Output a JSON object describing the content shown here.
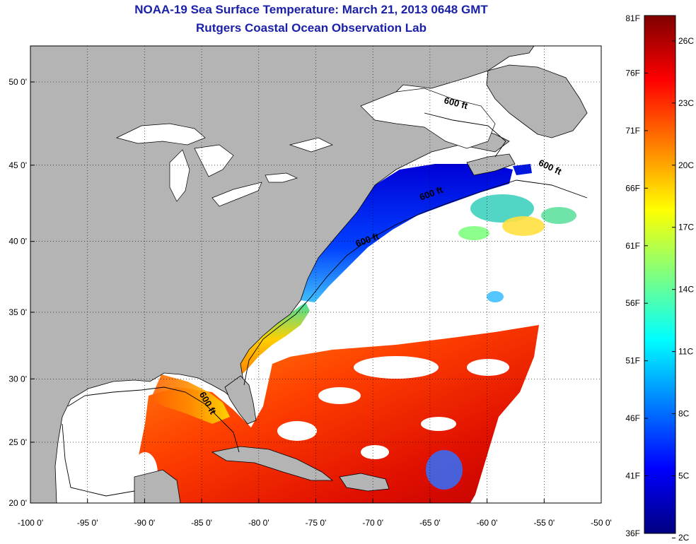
{
  "title": {
    "line1": "NOAA-19 Sea Surface Temperature:  March 21, 2013 0648 GMT",
    "line2": "Rutgers Coastal Ocean Observation Lab"
  },
  "map": {
    "lon_range": [
      -100,
      -50
    ],
    "lat_range": [
      20,
      52.5
    ],
    "lon_ticks": [
      {
        "value": -100,
        "label": "-100 0'"
      },
      {
        "value": -95,
        "label": "-95 0'"
      },
      {
        "value": -90,
        "label": "-90 0'"
      },
      {
        "value": -85,
        "label": "-85 0'"
      },
      {
        "value": -80,
        "label": "-80 0'"
      },
      {
        "value": -75,
        "label": "-75 0'"
      },
      {
        "value": -70,
        "label": "-70 0'"
      },
      {
        "value": -65,
        "label": "-65 0'"
      },
      {
        "value": -60,
        "label": "-60 0'"
      },
      {
        "value": -55,
        "label": "-55 0'"
      },
      {
        "value": -50,
        "label": "-50 0'"
      }
    ],
    "lat_ticks": [
      {
        "value": 20,
        "label": "20 0'"
      },
      {
        "value": 25,
        "label": "25 0'"
      },
      {
        "value": 30,
        "label": "30 0'"
      },
      {
        "value": 35,
        "label": "35 0'"
      },
      {
        "value": 40,
        "label": "40 0'"
      },
      {
        "value": 45,
        "label": "45 0'"
      },
      {
        "value": 50,
        "label": "50 0'"
      }
    ],
    "grid": "dotted",
    "land_color": "#b4b4b4",
    "no_data_color": "#ffffff",
    "contour_labels": [
      {
        "text": "600 ft",
        "lon": -62.8,
        "lat": 48.6,
        "rotate": 15
      },
      {
        "text": "600 ft",
        "lon": -54.6,
        "lat": 44.7,
        "rotate": 25
      },
      {
        "text": "600 ft",
        "lon": -64.8,
        "lat": 43.0,
        "rotate": -20
      },
      {
        "text": "600 ft",
        "lon": -70.4,
        "lat": 39.9,
        "rotate": -20
      },
      {
        "text": "600 ft",
        "lon": -84.7,
        "lat": 28.0,
        "rotate": 60
      }
    ]
  },
  "colorbar": {
    "colors": [
      "#00007f",
      "#0000ff",
      "#007fff",
      "#00ffff",
      "#7fff7f",
      "#ffff00",
      "#ff7f00",
      "#ff0000",
      "#7f0000"
    ],
    "f_ticks": [
      {
        "value": 36,
        "label": "36F"
      },
      {
        "value": 41,
        "label": "41F"
      },
      {
        "value": 46,
        "label": "46F"
      },
      {
        "value": 51,
        "label": "51F"
      },
      {
        "value": 56,
        "label": "56F"
      },
      {
        "value": 61,
        "label": "61F"
      },
      {
        "value": 66,
        "label": "66F"
      },
      {
        "value": 71,
        "label": "71F"
      },
      {
        "value": 76,
        "label": "76F"
      },
      {
        "value": 81,
        "label": "81F"
      }
    ],
    "c_ticks": [
      {
        "value": 2,
        "label": "2C"
      },
      {
        "value": 5,
        "label": "5C"
      },
      {
        "value": 8,
        "label": "8C"
      },
      {
        "value": 11,
        "label": "11C"
      },
      {
        "value": 14,
        "label": "14C"
      },
      {
        "value": 17,
        "label": "17C"
      },
      {
        "value": 20,
        "label": "20C"
      },
      {
        "value": 23,
        "label": "23C"
      },
      {
        "value": 26,
        "label": "26C"
      }
    ]
  }
}
